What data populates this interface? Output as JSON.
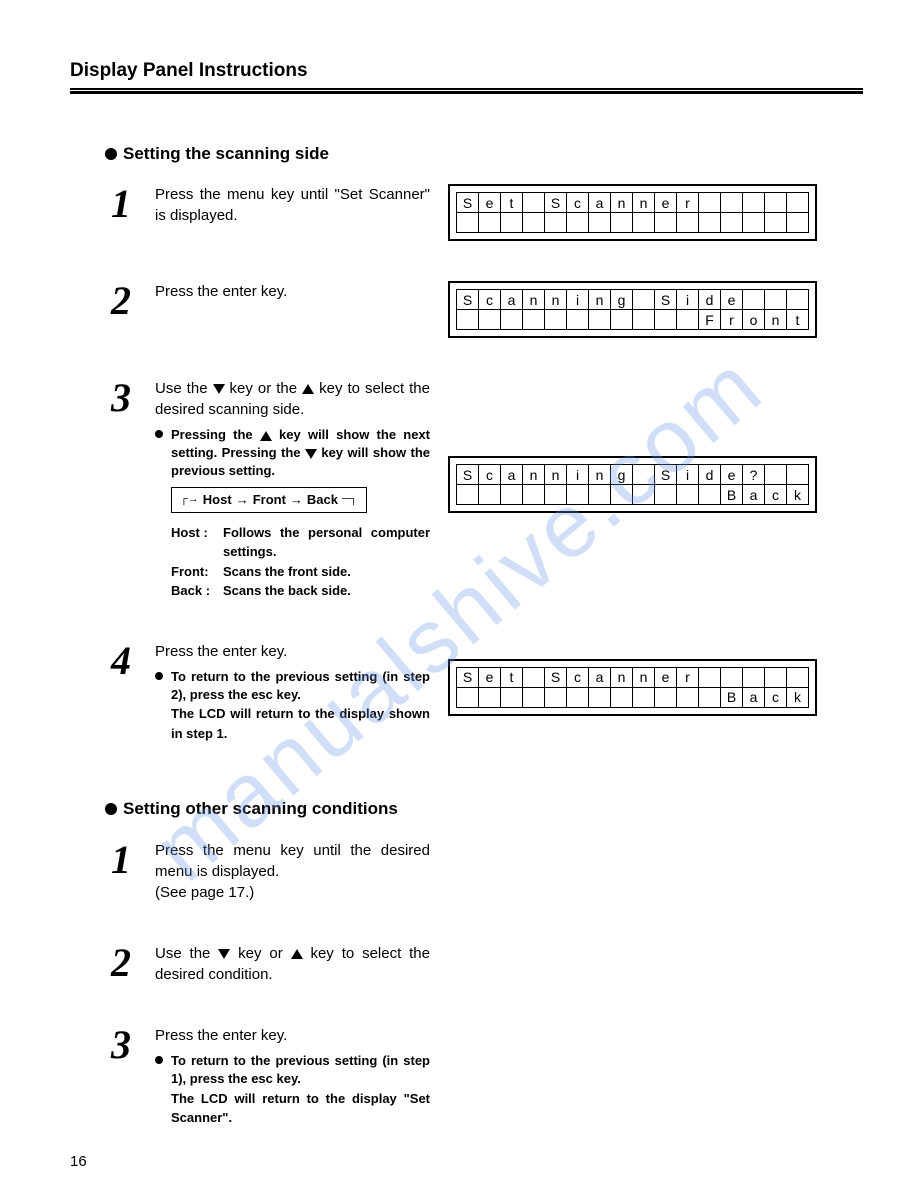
{
  "watermark": "manualshive.com",
  "header": {
    "title": "Display Panel Instructions"
  },
  "page_number": "16",
  "section_a": {
    "heading": "Setting the scanning side",
    "steps": [
      {
        "num": "1",
        "text": "Press the menu key until \"Set Scanner\" is displayed.",
        "lcd": {
          "row1": "Set Scanner     ",
          "row2": "                "
        }
      },
      {
        "num": "2",
        "text": "Press the enter key.",
        "lcd": {
          "row1": "Scanning Side   ",
          "row2": "           Front"
        }
      },
      {
        "num": "3",
        "text_pre": "Use the ",
        "text_mid": " key or the ",
        "text_post": " key to select the desired scanning side.",
        "bullet_pre": "Pressing the ",
        "bullet_mid": " key will show the next setting. Pressing the ",
        "bullet_post": " key will show the previous setting.",
        "cycle": {
          "a": "Host",
          "b": "Front",
          "c": "Back"
        },
        "defs": [
          {
            "term": "Host :",
            "desc": "Follows the personal computer settings."
          },
          {
            "term": "Front:",
            "desc": "Scans the front side."
          },
          {
            "term": "Back :",
            "desc": "Scans the back side."
          }
        ],
        "lcd": {
          "row1": "Scanning Side?  ",
          "row2": "            Back"
        }
      },
      {
        "num": "4",
        "text": "Press the enter key.",
        "bullet": "To return to the previous setting (in step 2), press the esc key.",
        "note": "The LCD will return to the display shown in step 1.",
        "lcd": {
          "row1": "Set Scanner     ",
          "row2": "            Back"
        }
      }
    ]
  },
  "section_b": {
    "heading": "Setting other scanning conditions",
    "steps": [
      {
        "num": "1",
        "text": "Press the menu key until the desired menu is displayed.",
        "text2": "(See page 17.)"
      },
      {
        "num": "2",
        "text_pre": "Use the ",
        "text_mid": " key or ",
        "text_post": " key to select the desired condition."
      },
      {
        "num": "3",
        "text": "Press the enter key.",
        "bullet": "To return to the previous setting (in step 1), press the esc key.",
        "note": "The LCD will return to the display \"Set Scanner\"."
      }
    ]
  }
}
